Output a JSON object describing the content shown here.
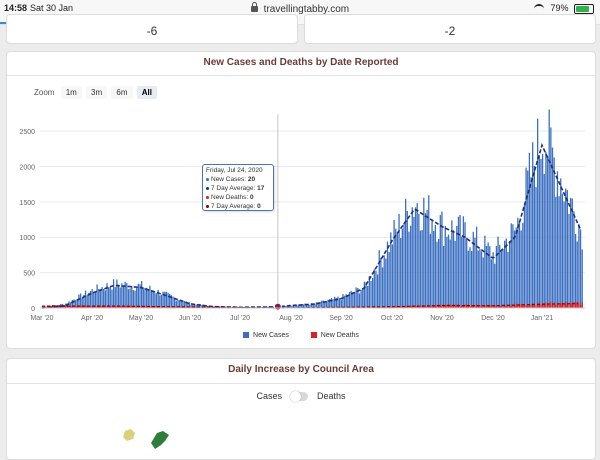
{
  "status": {
    "time": "14:58",
    "date": "Sat 30 Jan",
    "url": "travellingtabby.com",
    "battery": "79%"
  },
  "stats": {
    "left": "-6",
    "right": "-2"
  },
  "chart_card": {
    "title": "New Cases and Deaths by Date Reported",
    "zoom": {
      "label": "Zoom",
      "options": [
        "1m",
        "3m",
        "6m",
        "All"
      ],
      "active": "All"
    },
    "tooltip": {
      "date": "Friday, Jul 24, 2020",
      "rows": [
        {
          "label": "New Cases: ",
          "value": "20",
          "color": "#3b6fc1"
        },
        {
          "label": "7 Day Average: ",
          "value": "17",
          "color": "#1e2f7a"
        },
        {
          "label": "New Deaths: ",
          "value": "0",
          "color": "#e02020"
        },
        {
          "label": "7 Day Average: ",
          "value": "0",
          "color": "#8b0000"
        }
      ]
    },
    "legend": [
      {
        "label": "New Cases",
        "color": "#3b6fc1"
      },
      {
        "label": "New Deaths",
        "color": "#e02020"
      }
    ]
  },
  "chart_data": {
    "type": "bar",
    "x_ticks": [
      "Mar '20",
      "Apr '20",
      "May '20",
      "Jun '20",
      "Jul '20",
      "Aug '20",
      "Sep '20",
      "Oct '20",
      "Nov '20",
      "Dec '20",
      "Jan '21"
    ],
    "y_ticks": [
      "0",
      "500",
      "1000",
      "1500",
      "2000",
      "2500"
    ],
    "ylim": [
      0,
      2600
    ],
    "series": [
      {
        "name": "New Cases",
        "type": "bar",
        "color": "#3b6fc1",
        "values": [
          {
            "x": "Mar '20",
            "y": 10
          },
          {
            "x": "Mar 15",
            "y": 60
          },
          {
            "x": "Apr '20",
            "y": 250
          },
          {
            "x": "Apr 15",
            "y": 340
          },
          {
            "x": "May '20",
            "y": 310
          },
          {
            "x": "May 15",
            "y": 200
          },
          {
            "x": "Jun '20",
            "y": 60
          },
          {
            "x": "Jun 15",
            "y": 25
          },
          {
            "x": "Jul '20",
            "y": 10
          },
          {
            "x": "Jul 24",
            "y": 20
          },
          {
            "x": "Aug '20",
            "y": 40
          },
          {
            "x": "Aug 15",
            "y": 60
          },
          {
            "x": "Sep '20",
            "y": 150
          },
          {
            "x": "Sep 15",
            "y": 300
          },
          {
            "x": "Oct '20",
            "y": 1000
          },
          {
            "x": "Oct 15",
            "y": 1500
          },
          {
            "x": "Nov '20",
            "y": 1150
          },
          {
            "x": "Nov 15",
            "y": 1050
          },
          {
            "x": "Dec '20",
            "y": 750
          },
          {
            "x": "Dec 15",
            "y": 1100
          },
          {
            "x": "Jan '21",
            "y": 2500
          },
          {
            "x": "Jan 15",
            "y": 1800
          },
          {
            "x": "Jan 29",
            "y": 1100
          }
        ]
      },
      {
        "name": "7 Day Average",
        "type": "line",
        "color": "#1e2f7a",
        "values": [
          {
            "x": "Mar '20",
            "y": 0
          },
          {
            "x": "Mar 15",
            "y": 30
          },
          {
            "x": "Apr '20",
            "y": 210
          },
          {
            "x": "Apr 15",
            "y": 320
          },
          {
            "x": "May '20",
            "y": 290
          },
          {
            "x": "May 15",
            "y": 190
          },
          {
            "x": "Jun '20",
            "y": 60
          },
          {
            "x": "Jun 15",
            "y": 20
          },
          {
            "x": "Jul '20",
            "y": 10
          },
          {
            "x": "Jul 24",
            "y": 17
          },
          {
            "x": "Aug '20",
            "y": 35
          },
          {
            "x": "Aug 15",
            "y": 55
          },
          {
            "x": "Sep '20",
            "y": 130
          },
          {
            "x": "Sep 15",
            "y": 280
          },
          {
            "x": "Oct '20",
            "y": 950
          },
          {
            "x": "Oct 15",
            "y": 1400
          },
          {
            "x": "Nov '20",
            "y": 1150
          },
          {
            "x": "Nov 15",
            "y": 1000
          },
          {
            "x": "Dec '20",
            "y": 700
          },
          {
            "x": "Dec 15",
            "y": 1000
          },
          {
            "x": "Jan '21",
            "y": 2300
          },
          {
            "x": "Jan 15",
            "y": 1700
          },
          {
            "x": "Jan 29",
            "y": 1100
          }
        ]
      },
      {
        "name": "New Deaths",
        "type": "bar",
        "color": "#e02020",
        "values": [
          {
            "x": "Apr 15",
            "y": 30
          },
          {
            "x": "May '20",
            "y": 25
          },
          {
            "x": "Jul 24",
            "y": 0
          },
          {
            "x": "Oct '20",
            "y": 20
          },
          {
            "x": "Nov '20",
            "y": 40
          },
          {
            "x": "Dec '20",
            "y": 35
          },
          {
            "x": "Jan '21",
            "y": 60
          },
          {
            "x": "Jan 29",
            "y": 70
          }
        ]
      },
      {
        "name": "7 Day Average",
        "type": "line",
        "color": "#8b0000",
        "values": [
          {
            "x": "Jul 24",
            "y": 0
          }
        ]
      }
    ]
  },
  "map_card": {
    "title": "Daily Increase by Council Area",
    "toggle": {
      "left": "Cases",
      "right": "Deaths"
    }
  }
}
